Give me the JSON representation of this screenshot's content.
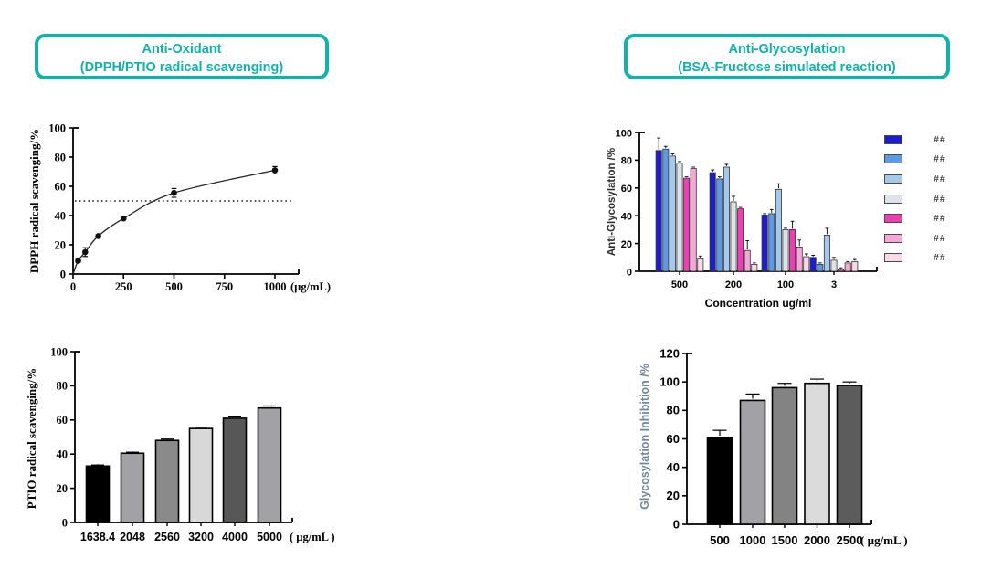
{
  "headers": {
    "left": {
      "line1": "Anti-Oxidant",
      "line2": "(DPPH/PTIO radical scavenging)"
    },
    "right": {
      "line1": "Anti-Glycosylation",
      "line2": "(BSA-Fructose simulated reaction)"
    }
  },
  "colors": {
    "accent_teal": "#10b2ab",
    "axis_black": "#000000",
    "right_ylabel_blue": "#6f86a2",
    "marker_black": "#111111"
  },
  "chart_data": [
    {
      "id": "dpph",
      "type": "scatter",
      "title": "",
      "ylabel": "DPPH radical scavenging/%",
      "xlabel": "(µg/mL)",
      "xlim": [
        0,
        1050
      ],
      "ylim": [
        0,
        100
      ],
      "xticks": [
        0,
        250,
        500,
        750,
        1000
      ],
      "yticks": [
        0,
        20,
        40,
        60,
        80,
        100
      ],
      "reference_line_y": 50,
      "fit_curve": true,
      "points": [
        {
          "x": 25,
          "y": 9,
          "err": 1
        },
        {
          "x": 60,
          "y": 15,
          "err": 3
        },
        {
          "x": 125,
          "y": 26,
          "err": 1
        },
        {
          "x": 250,
          "y": 38,
          "err": 1
        },
        {
          "x": 500,
          "y": 55.5,
          "err": 3
        },
        {
          "x": 1000,
          "y": 71,
          "err": 2.5
        }
      ]
    },
    {
      "id": "ptio",
      "type": "bar",
      "title": "",
      "ylabel": "PTIO radical scavenging/%",
      "xlabel": "( µg/mL )",
      "ylim": [
        0,
        100
      ],
      "yticks": [
        0,
        20,
        40,
        60,
        80,
        100
      ],
      "categories": [
        "1638.4",
        "2048",
        "2560",
        "3200",
        "4000",
        "5000"
      ],
      "values": [
        33,
        40.5,
        48,
        55,
        61,
        67
      ],
      "errors": [
        0.6,
        0.6,
        0.8,
        0.8,
        0.8,
        1.2
      ],
      "bar_colors": [
        "#000000",
        "#a2a2a6",
        "#8a8a8a",
        "#d8d8d8",
        "#575757",
        "#a2a2a6"
      ]
    },
    {
      "id": "antiglyc",
      "type": "bar",
      "grouped": true,
      "title": "",
      "ylabel": "Anti-Glycosylation /%",
      "xlabel": "Concentration ug/ml",
      "ylim": [
        0,
        100
      ],
      "yticks": [
        0,
        20,
        40,
        60,
        80,
        100
      ],
      "categories": [
        "500",
        "200",
        "100",
        "3"
      ],
      "legend_position": "right",
      "series": [
        {
          "name": "##",
          "color": "#1c1cd2",
          "values": [
            87,
            71,
            40.5,
            10
          ],
          "errors": [
            9,
            2,
            1,
            1.5
          ]
        },
        {
          "name": "##",
          "color": "#5c9ae4",
          "values": [
            88,
            66.5,
            41.5,
            5
          ],
          "errors": [
            2,
            1.5,
            3,
            1
          ]
        },
        {
          "name": "##",
          "color": "#a6c8ec",
          "values": [
            83,
            75,
            59,
            26
          ],
          "errors": [
            1.5,
            2,
            4,
            5
          ]
        },
        {
          "name": "##",
          "color": "#dce2ea",
          "values": [
            78,
            50,
            30,
            8
          ],
          "errors": [
            1,
            4,
            1,
            2
          ]
        },
        {
          "name": "##",
          "color": "#ee3eb4",
          "values": [
            67,
            45,
            30,
            1.5
          ],
          "errors": [
            1,
            1,
            6,
            1
          ]
        },
        {
          "name": "##",
          "color": "#f6a6d7",
          "values": [
            74,
            15,
            17.5,
            6
          ],
          "errors": [
            1,
            7,
            5,
            1
          ]
        },
        {
          "name": "##",
          "color": "#f8d8e9",
          "values": [
            9,
            5,
            10.5,
            7
          ],
          "errors": [
            2,
            1,
            2,
            1.5
          ]
        }
      ]
    },
    {
      "id": "glycinhib",
      "type": "bar",
      "title": "",
      "ylabel": "Glycosylation Inhibition /%",
      "xlabel": "( µg/mL )",
      "ylim": [
        0,
        120
      ],
      "yticks": [
        0,
        20,
        40,
        60,
        80,
        100,
        120
      ],
      "categories": [
        "500",
        "1000",
        "1500",
        "2000",
        "2500"
      ],
      "values": [
        61,
        87,
        96,
        99,
        97.5
      ],
      "errors": [
        5,
        4.5,
        3,
        3,
        2.5
      ],
      "bar_colors": [
        "#000000",
        "#a2a2a6",
        "#838383",
        "#dbdbdb",
        "#5c5c5c"
      ]
    }
  ]
}
